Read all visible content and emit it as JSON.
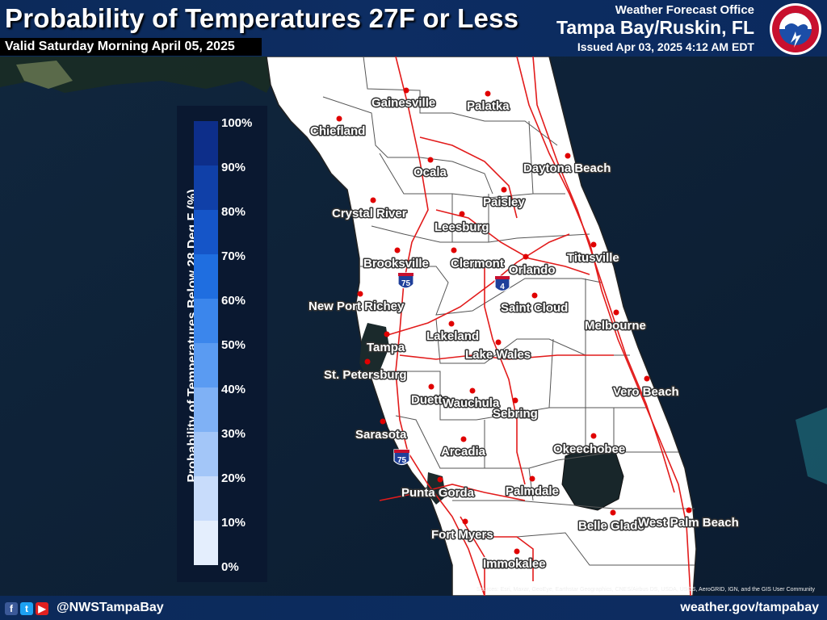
{
  "header": {
    "title": "Probability of Temperatures 27F or Less",
    "valid": "Valid Saturday Morning April 05, 2025",
    "office_top": "Weather Forecast Office",
    "office_name": "Tampa Bay/Ruskin, FL",
    "issued": "Issued Apr 03, 2025 4:12 AM EDT",
    "logo_icon": "nws-logo-icon"
  },
  "legend": {
    "title": "Probability of Temperatures Below 28 Deg F (%)",
    "ticks": [
      "100%",
      "90%",
      "80%",
      "70%",
      "60%",
      "50%",
      "40%",
      "30%",
      "20%",
      "10%",
      "0%"
    ],
    "colors": [
      "#0d2e8a",
      "#1040a8",
      "#1555c8",
      "#1f6ee0",
      "#3b86ec",
      "#5a9bf2",
      "#7fb1f5",
      "#a3c6f8",
      "#c8dcfb",
      "#e4eefd",
      "#ffffff"
    ]
  },
  "map": {
    "all_values_percent": 0,
    "cities": [
      {
        "name": "Gainesville"
      },
      {
        "name": "Palatka"
      },
      {
        "name": "Chiefland"
      },
      {
        "name": "Ocala"
      },
      {
        "name": "Daytona Beach"
      },
      {
        "name": "Crystal River"
      },
      {
        "name": "Paisley"
      },
      {
        "name": "Leesburg"
      },
      {
        "name": "Brooksville"
      },
      {
        "name": "Clermont"
      },
      {
        "name": "Orlando"
      },
      {
        "name": "Titusville"
      },
      {
        "name": "New Port Richey"
      },
      {
        "name": "Saint Cloud"
      },
      {
        "name": "Melbourne"
      },
      {
        "name": "Lakeland"
      },
      {
        "name": "Tampa"
      },
      {
        "name": "Lake Wales"
      },
      {
        "name": "St. Petersburg"
      },
      {
        "name": "Vero Beach"
      },
      {
        "name": "Duette"
      },
      {
        "name": "Wauchula"
      },
      {
        "name": "Sebring"
      },
      {
        "name": "Sarasota"
      },
      {
        "name": "Arcadia"
      },
      {
        "name": "Okeechobee"
      },
      {
        "name": "Punta Gorda"
      },
      {
        "name": "Palmdale"
      },
      {
        "name": "Belle Glade"
      },
      {
        "name": "West Palm Beach"
      },
      {
        "name": "Fort Myers"
      },
      {
        "name": "Immokalee"
      }
    ],
    "highway_shields": [
      {
        "label": "75"
      },
      {
        "label": "4"
      },
      {
        "label": "75"
      }
    ],
    "source": "Sources: Esri, Maxar, GeoEye, Earthstar Geographics, CNES/Airbus DS, USDA, USGS, AeroGRID, IGN, and the GIS User Community"
  },
  "footer": {
    "handle": "@NWSTampaBay",
    "website": "weather.gov/tampabay",
    "social_icons": [
      "facebook-icon",
      "twitter-icon",
      "youtube-icon"
    ]
  }
}
